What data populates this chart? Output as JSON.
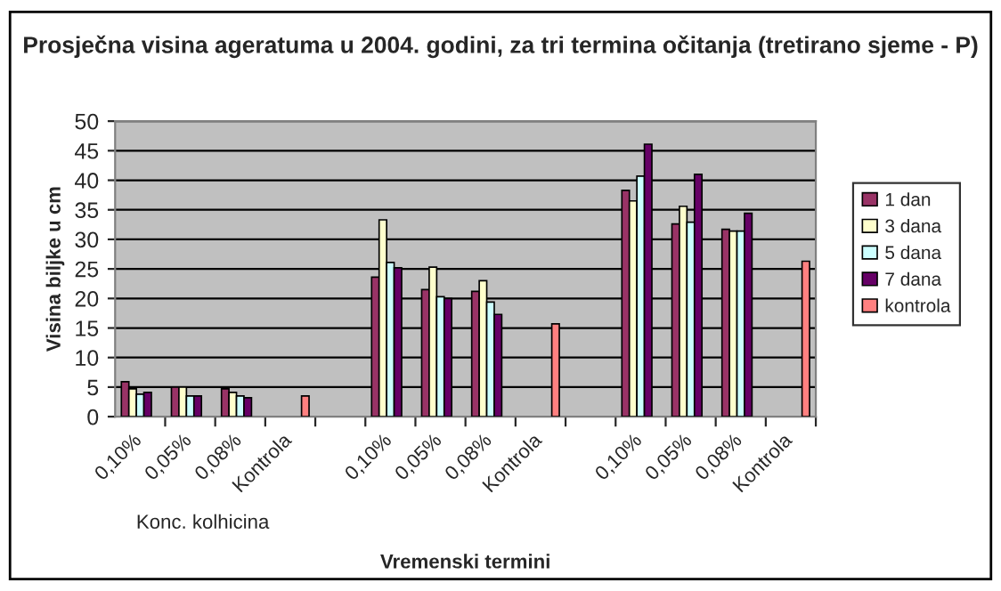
{
  "chart_data": {
    "type": "bar",
    "title": "Prosječna visina ageratuma u 2004. godini, za tri termina očitanja (tretirano sjeme - P)",
    "xlabel": "Vremenski termini",
    "ylabel": "Visina biljke u cm",
    "annotations": [
      "Konc. kolhicina"
    ],
    "categories": [
      "0,10%",
      "0,05%",
      "0,08%",
      "Kontrola",
      null,
      "0,10%",
      "0,05%",
      "0,08%",
      "Kontrola",
      null,
      "0,10%",
      "0,05%",
      "0,08%",
      "Kontrola"
    ],
    "series": [
      {
        "name": "1 dan",
        "color": "#993366",
        "values": [
          5.9,
          5.0,
          4.7,
          null,
          null,
          23.6,
          21.5,
          21.2,
          null,
          null,
          38.3,
          32.6,
          31.7,
          null
        ]
      },
      {
        "name": "3 dana",
        "color": "#ffffcc",
        "values": [
          4.7,
          5.0,
          4.1,
          null,
          null,
          33.3,
          25.3,
          23.0,
          null,
          null,
          36.5,
          35.6,
          31.4,
          null
        ]
      },
      {
        "name": "5 dana",
        "color": "#ccffff",
        "values": [
          3.8,
          3.5,
          3.5,
          null,
          null,
          26.1,
          20.3,
          19.4,
          null,
          null,
          40.7,
          32.9,
          31.4,
          null
        ]
      },
      {
        "name": "7 dana",
        "color": "#660066",
        "values": [
          4.1,
          3.5,
          3.2,
          null,
          null,
          25.2,
          20.0,
          17.3,
          null,
          null,
          46.1,
          41.0,
          34.4,
          null
        ]
      },
      {
        "name": "kontrola",
        "color": "#ff8080",
        "values": [
          null,
          null,
          null,
          3.5,
          null,
          null,
          null,
          null,
          15.7,
          null,
          null,
          null,
          null,
          26.3
        ]
      }
    ],
    "ylim": [
      0,
      50
    ],
    "yticks": [
      0,
      5,
      10,
      15,
      20,
      25,
      30,
      35,
      40,
      45,
      50
    ],
    "grid": "y",
    "legend": "right"
  }
}
